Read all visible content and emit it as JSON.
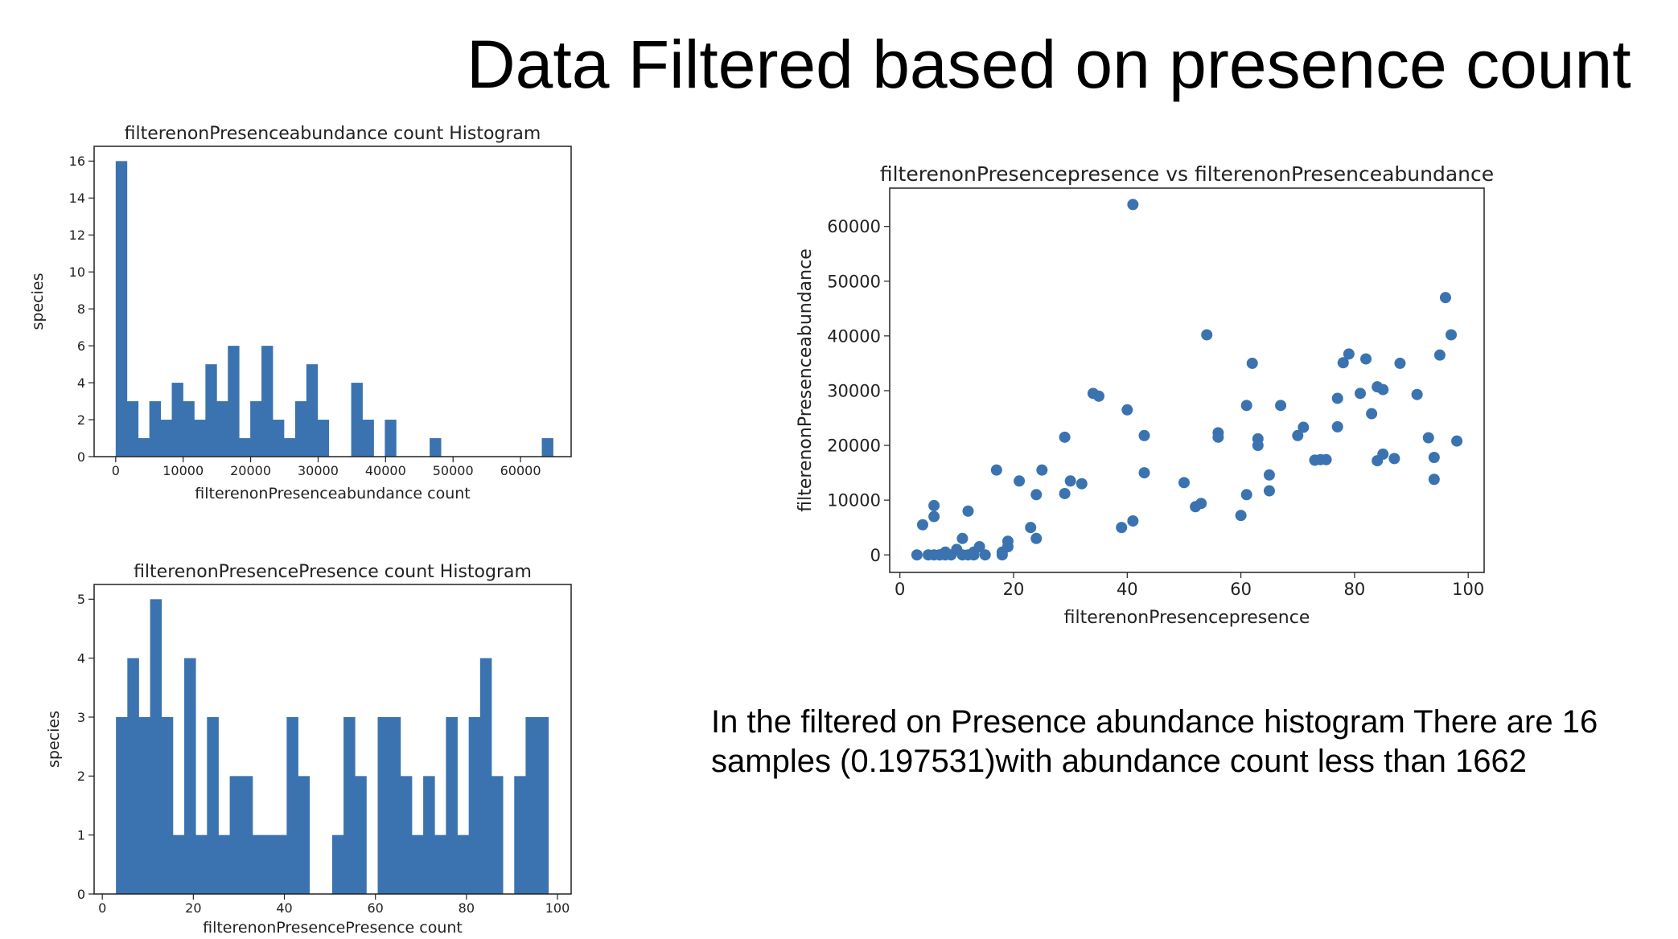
{
  "slide": {
    "title": "Data Filtered based on presence count",
    "note": "In the filtered on Presence abundance histogram There are 16 samples (0.197531)with abundance count less than 1662"
  },
  "colors": {
    "bar": "#3a73b0",
    "point": "#3a73b0",
    "axis": "#222222"
  },
  "chart_data": [
    {
      "id": "abundance-histogram",
      "type": "bar",
      "title": "filterenonPresenceabundance count Histogram",
      "xlabel": "filterenonPresenceabundance count",
      "ylabel": "species",
      "xlim": [
        -3200,
        67500
      ],
      "ylim": [
        0,
        16.8
      ],
      "xticks": [
        0,
        10000,
        20000,
        30000,
        40000,
        50000,
        60000
      ],
      "yticks": [
        0,
        2,
        4,
        6,
        8,
        10,
        12,
        14,
        16
      ],
      "bin_start": 0,
      "bin_width": 1662,
      "counts": [
        16,
        3,
        1,
        3,
        2,
        4,
        3,
        2,
        5,
        3,
        6,
        1,
        3,
        6,
        2,
        1,
        3,
        5,
        2,
        0,
        0,
        4,
        2,
        0,
        2,
        0,
        0,
        0,
        1,
        0,
        0,
        0,
        0,
        0,
        0,
        0,
        0,
        0,
        1
      ]
    },
    {
      "id": "presence-histogram",
      "type": "bar",
      "title": "filterenonPresencePresence count Histogram",
      "xlabel": "filterenonPresencePresence count",
      "ylabel": "species",
      "xlim": [
        -1.8,
        103
      ],
      "ylim": [
        0,
        5.25
      ],
      "xticks": [
        0,
        20,
        40,
        60,
        80,
        100
      ],
      "yticks": [
        0,
        1,
        2,
        3,
        4,
        5
      ],
      "bin_start": 3,
      "bin_width": 2.5,
      "counts": [
        3,
        4,
        3,
        5,
        3,
        1,
        4,
        1,
        3,
        1,
        2,
        2,
        1,
        1,
        1,
        3,
        2,
        0,
        0,
        1,
        3,
        2,
        0,
        3,
        3,
        2,
        1,
        2,
        1,
        3,
        1,
        3,
        4,
        2,
        0,
        2,
        3,
        3
      ]
    },
    {
      "id": "presence-vs-abundance",
      "type": "scatter",
      "title": "filterenonPresencepresence vs filterenonPresenceabundance",
      "xlabel": "filterenonPresencepresence",
      "ylabel": "filterenonPresenceabundance",
      "xlim": [
        -1.8,
        102.8
      ],
      "ylim": [
        -3200,
        67000
      ],
      "xticks": [
        0,
        20,
        40,
        60,
        80,
        100
      ],
      "yticks": [
        0,
        10000,
        20000,
        30000,
        40000,
        50000,
        60000
      ],
      "x": [
        3,
        4,
        5,
        6,
        6,
        6,
        7,
        7,
        8,
        8,
        9,
        10,
        11,
        11,
        12,
        12,
        13,
        13,
        14,
        15,
        17,
        18,
        18,
        19,
        19,
        21,
        23,
        24,
        24,
        25,
        29,
        29,
        30,
        32,
        34,
        35,
        39,
        40,
        41,
        41,
        43,
        43,
        50,
        52,
        53,
        54,
        56,
        56,
        60,
        61,
        61,
        62,
        63,
        63,
        65,
        65,
        67,
        70,
        71,
        73,
        74,
        75,
        77,
        77,
        78,
        79,
        81,
        82,
        83,
        84,
        84,
        85,
        85,
        87,
        88,
        91,
        93,
        94,
        94,
        95,
        96,
        97,
        98
      ],
      "y": [
        0,
        5500,
        0,
        0,
        9000,
        7000,
        0,
        0,
        0,
        500,
        0,
        1000,
        0,
        3000,
        8000,
        0,
        500,
        0,
        1500,
        0,
        15500,
        500,
        0,
        1500,
        2500,
        13500,
        5000,
        11000,
        3000,
        15500,
        21500,
        11200,
        13500,
        13000,
        29500,
        29000,
        5000,
        26500,
        64000,
        6200,
        21800,
        15000,
        13200,
        8800,
        9400,
        40200,
        22300,
        21500,
        7200,
        11000,
        27300,
        35000,
        21200,
        20000,
        14600,
        11700,
        27300,
        21800,
        23300,
        17300,
        17400,
        17400,
        28600,
        23400,
        35100,
        36700,
        29500,
        35800,
        25800,
        30700,
        17200,
        30200,
        18400,
        17600,
        35000,
        29300,
        21400,
        13800,
        17800,
        36500,
        47000,
        40200,
        20800
      ]
    }
  ]
}
